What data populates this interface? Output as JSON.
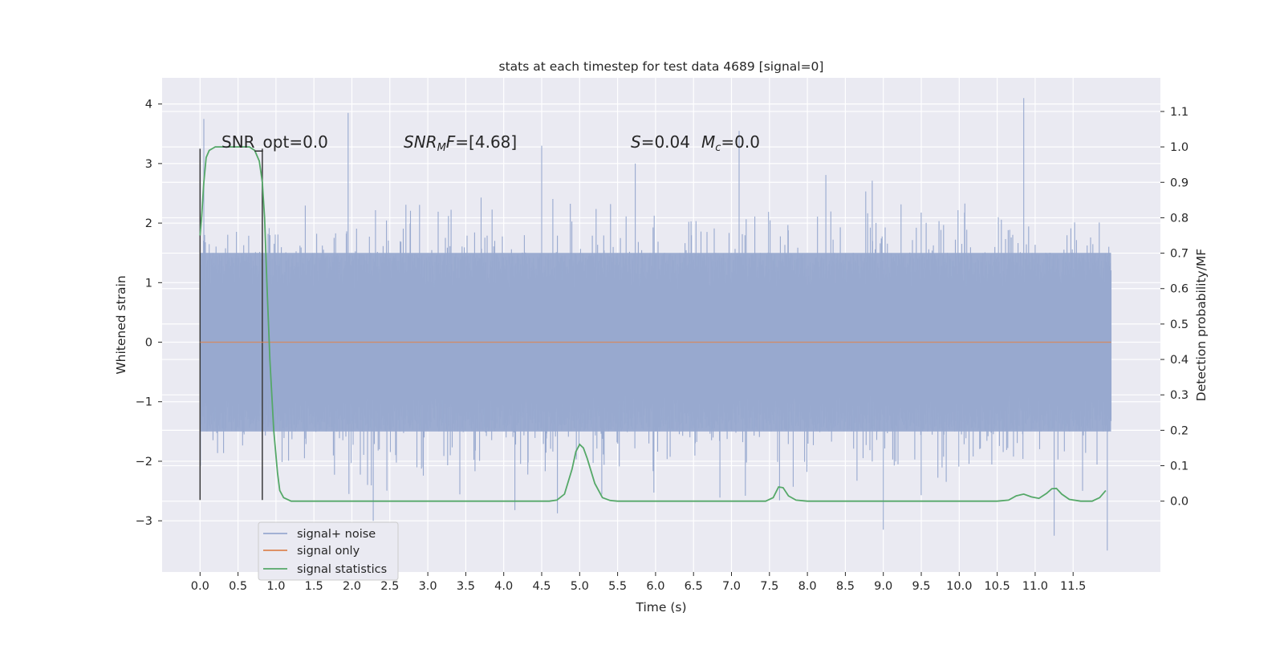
{
  "chart_data": {
    "type": "line",
    "title": "stats at each timestep for test data 4689 [signal=0]",
    "xlabel": "Time (s)",
    "ylabel": "Whitened strain",
    "ylabel_right": "Detection probability/MF",
    "xlim": [
      -0.5,
      12.65
    ],
    "ylim": [
      -3.86,
      4.44
    ],
    "ylim_right": [
      -0.2,
      1.195
    ],
    "x_ticks": [
      "0.0",
      "0.5",
      "1.0",
      "1.5",
      "2.0",
      "2.5",
      "3.0",
      "3.5",
      "4.0",
      "4.5",
      "5.0",
      "5.5",
      "6.0",
      "6.5",
      "7.0",
      "7.5",
      "8.0",
      "8.5",
      "9.0",
      "9.5",
      "10.0",
      "10.5",
      "11.0",
      "11.5"
    ],
    "y_ticks": [
      "−3",
      "−2",
      "−1",
      "0",
      "1",
      "2",
      "3",
      "4"
    ],
    "y_ticks_right": [
      "0.0",
      "0.1",
      "0.2",
      "0.3",
      "0.4",
      "0.5",
      "0.6",
      "0.7",
      "0.8",
      "0.9",
      "1.0",
      "1.1"
    ],
    "grid": true,
    "legend_position": "lower-left",
    "annotations": {
      "snr_opt": "SNR_opt=0.0",
      "snr_mf": "=[4.68]",
      "s_mc": "=0.04",
      "mc_val": "=0.0"
    },
    "series": [
      {
        "name": "signal+ noise",
        "color": "#98a9cf",
        "kind": "noise",
        "x_range": [
          0.0,
          12.0
        ],
        "band_range": [
          -1.5,
          1.5
        ],
        "peak_range": [
          -3.5,
          4.1
        ],
        "notable_peaks": [
          {
            "x": 0.05,
            "y": 3.75
          },
          {
            "x": 1.95,
            "y": 3.85
          },
          {
            "x": 4.5,
            "y": 3.3
          },
          {
            "x": 7.1,
            "y": 3.55
          },
          {
            "x": 10.85,
            "y": 4.1
          },
          {
            "x": 9.0,
            "y": -3.15
          },
          {
            "x": 11.25,
            "y": -3.25
          },
          {
            "x": 11.95,
            "y": -3.5
          }
        ]
      },
      {
        "name": "signal only",
        "color": "#dd8452",
        "x": [
          0.0,
          12.0
        ],
        "y": [
          0.0,
          0.0
        ]
      },
      {
        "name": "signal statistics",
        "color": "#55a868",
        "axis": "right",
        "x": [
          0.0,
          0.02,
          0.05,
          0.08,
          0.12,
          0.2,
          0.3,
          0.5,
          0.65,
          0.72,
          0.78,
          0.82,
          0.85,
          0.88,
          0.92,
          0.97,
          1.02,
          1.05,
          1.1,
          1.2,
          1.5,
          2.0,
          3.0,
          4.0,
          4.6,
          4.7,
          4.8,
          4.9,
          4.95,
          5.0,
          5.05,
          5.1,
          5.2,
          5.3,
          5.4,
          5.5,
          6.0,
          7.0,
          7.45,
          7.55,
          7.62,
          7.68,
          7.75,
          7.85,
          8.0,
          8.5,
          9.0,
          10.0,
          10.5,
          10.65,
          10.75,
          10.85,
          10.95,
          11.05,
          11.15,
          11.22,
          11.28,
          11.35,
          11.45,
          11.6,
          11.75,
          11.85,
          11.93
        ],
        "y": [
          0.75,
          0.8,
          0.9,
          0.97,
          0.99,
          1.0,
          1.0,
          1.0,
          1.0,
          0.99,
          0.96,
          0.9,
          0.8,
          0.62,
          0.4,
          0.2,
          0.08,
          0.03,
          0.01,
          0.0,
          0.0,
          0.0,
          0.0,
          0.0,
          0.0,
          0.003,
          0.02,
          0.09,
          0.14,
          0.16,
          0.15,
          0.12,
          0.05,
          0.01,
          0.002,
          0.0,
          0.0,
          0.0,
          0.0,
          0.01,
          0.04,
          0.038,
          0.015,
          0.003,
          0.0,
          0.0,
          0.0,
          0.0,
          0.0,
          0.003,
          0.015,
          0.02,
          0.012,
          0.008,
          0.022,
          0.035,
          0.036,
          0.02,
          0.005,
          0.0,
          0.0,
          0.01,
          0.03
        ]
      }
    ],
    "window_markers": [
      {
        "x": 0.0,
        "y_range": [
          -2.65,
          3.25
        ]
      },
      {
        "x": 0.82,
        "y_range": [
          -2.65,
          3.25
        ]
      }
    ]
  }
}
